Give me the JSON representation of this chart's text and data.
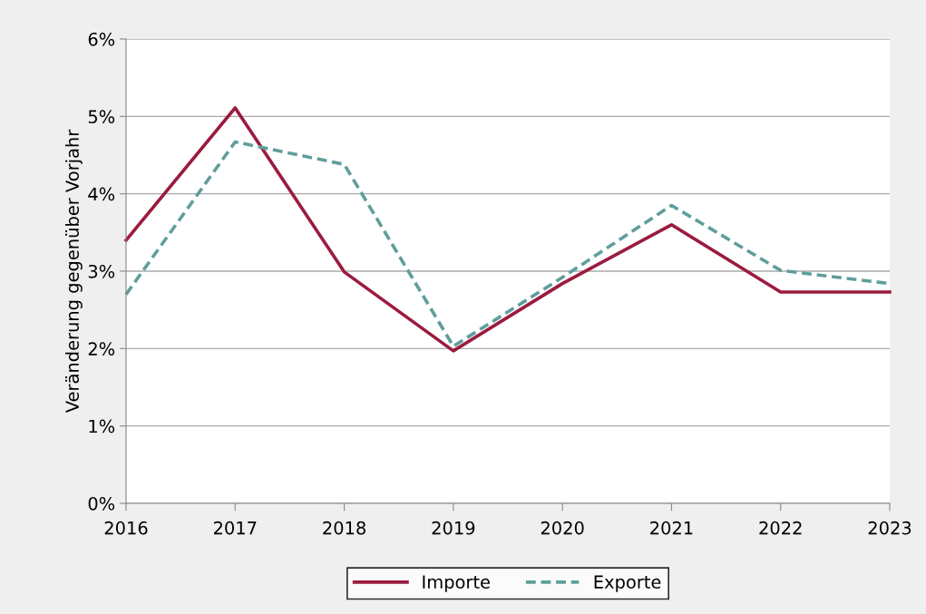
{
  "chart_data": {
    "type": "line",
    "ylabel": "Veränderung gegenüber Vorjahr",
    "x": [
      2016,
      2017,
      2018,
      2019,
      2020,
      2021,
      2022,
      2023
    ],
    "series": [
      {
        "name": "Importe",
        "color": "#9b1b3e",
        "line_style": "solid",
        "values": [
          3.4,
          5.11,
          2.99,
          1.97,
          2.84,
          3.6,
          2.73,
          2.73
        ]
      },
      {
        "name": "Exporte",
        "color": "#5f9e9c",
        "line_style": "dashed",
        "values": [
          2.7,
          4.67,
          4.38,
          2.03,
          2.92,
          3.85,
          3.01,
          2.84
        ]
      }
    ],
    "xlim": [
      2016,
      2023
    ],
    "xticks": [
      2016,
      2017,
      2018,
      2019,
      2020,
      2021,
      2022,
      2023
    ],
    "ylim": [
      0,
      6
    ],
    "yticks": [
      {
        "value": 0,
        "label": "0%"
      },
      {
        "value": 1,
        "label": "1%"
      },
      {
        "value": 2,
        "label": "2%"
      },
      {
        "value": 3,
        "label": "3%"
      },
      {
        "value": 4,
        "label": "4%"
      },
      {
        "value": 5,
        "label": "5%"
      },
      {
        "value": 6,
        "label": "6%"
      }
    ],
    "grid": "y",
    "legend": "bottom",
    "marker": "none"
  }
}
